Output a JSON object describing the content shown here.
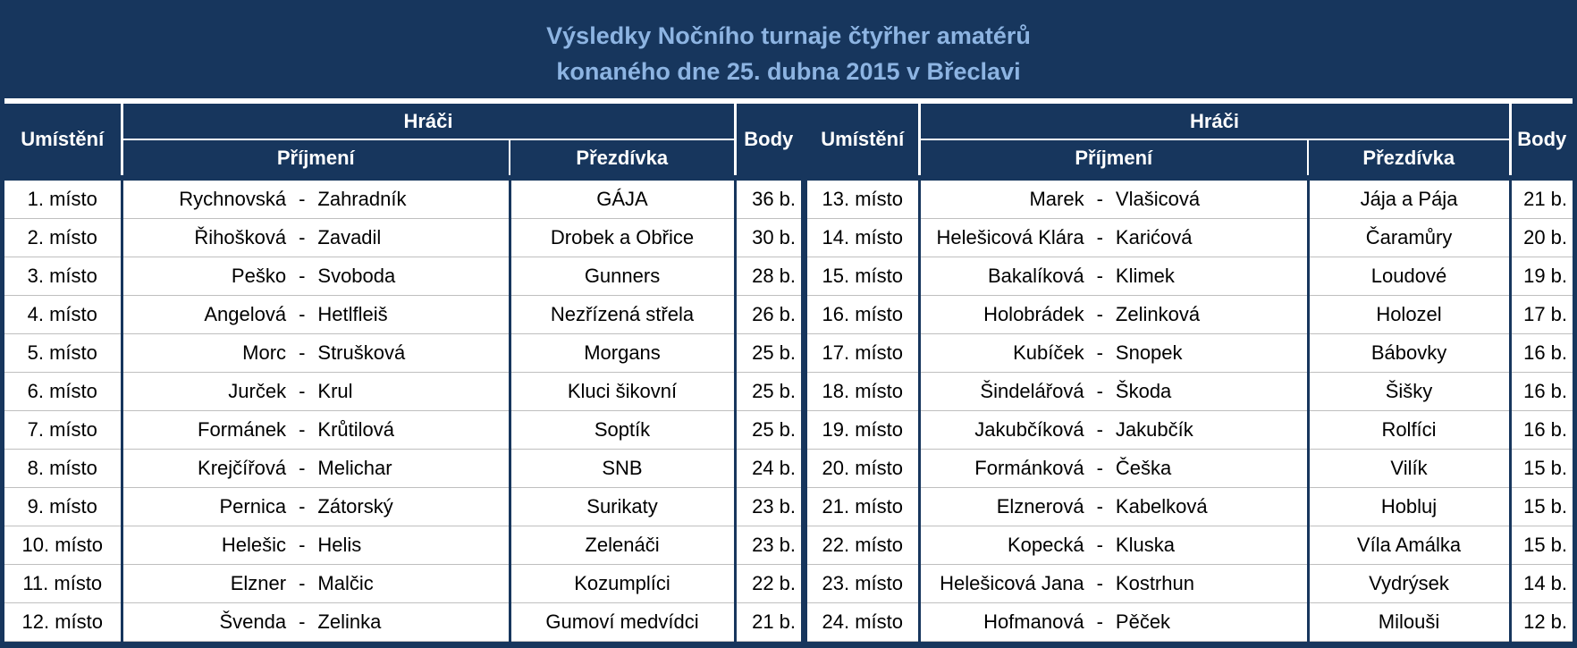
{
  "title": {
    "line1": "Výsledky Nočního turnaje čtyřher amatérů",
    "line2": "konaného dne 25. dubna 2015 v Břeclavi"
  },
  "headers": {
    "placement": "Umístění",
    "players": "Hráči",
    "surname": "Příjmení",
    "nickname": "Přezdívka",
    "points": "Body"
  },
  "left_rows": [
    {
      "place": "1. místo",
      "p1": "Rychnovská",
      "p2": "Zahradník",
      "nick": "GÁJA",
      "pts": "36 b."
    },
    {
      "place": "2. místo",
      "p1": "Řihošková",
      "p2": "Zavadil",
      "nick": "Drobek a Obřice",
      "pts": "30 b."
    },
    {
      "place": "3. místo",
      "p1": "Peško",
      "p2": "Svoboda",
      "nick": "Gunners",
      "pts": "28 b."
    },
    {
      "place": "4. místo",
      "p1": "Angelová",
      "p2": "Hetlfleiš",
      "nick": "Nezřízená střela",
      "pts": "26 b."
    },
    {
      "place": "5. místo",
      "p1": "Morc",
      "p2": "Strušková",
      "nick": "Morgans",
      "pts": "25 b."
    },
    {
      "place": "6. místo",
      "p1": "Jurček",
      "p2": "Krul",
      "nick": "Kluci šikovní",
      "pts": "25 b."
    },
    {
      "place": "7. místo",
      "p1": "Formánek",
      "p2": "Krůtilová",
      "nick": "Soptík",
      "pts": "25 b."
    },
    {
      "place": "8. místo",
      "p1": "Krejčířová",
      "p2": "Melichar",
      "nick": "SNB",
      "pts": "24 b."
    },
    {
      "place": "9. místo",
      "p1": "Pernica",
      "p2": "Zátorský",
      "nick": "Surikaty",
      "pts": "23 b."
    },
    {
      "place": "10. místo",
      "p1": "Helešic",
      "p2": "Helis",
      "nick": "Zelenáči",
      "pts": "23 b."
    },
    {
      "place": "11. místo",
      "p1": "Elzner",
      "p2": "Malčic",
      "nick": "Kozumplíci",
      "pts": "22 b."
    },
    {
      "place": "12. místo",
      "p1": "Švenda",
      "p2": "Zelinka",
      "nick": "Gumoví medvídci",
      "pts": "21 b."
    }
  ],
  "right_rows": [
    {
      "place": "13. místo",
      "p1": "Marek",
      "p2": "Vlašicová",
      "nick": "Jája a Pája",
      "pts": "21 b."
    },
    {
      "place": "14. místo",
      "p1": "Helešicová Klára",
      "p2": "Karićová",
      "nick": "Čaramůry",
      "pts": "20 b."
    },
    {
      "place": "15. místo",
      "p1": "Bakalíková",
      "p2": "Klimek",
      "nick": "Loudové",
      "pts": "19 b."
    },
    {
      "place": "16. místo",
      "p1": "Holobrádek",
      "p2": "Zelinková",
      "nick": "Holozel",
      "pts": "17 b."
    },
    {
      "place": "17. místo",
      "p1": "Kubíček",
      "p2": "Snopek",
      "nick": "Bábovky",
      "pts": "16 b."
    },
    {
      "place": "18. místo",
      "p1": "Šindelářová",
      "p2": "Škoda",
      "nick": "Šišky",
      "pts": "16 b."
    },
    {
      "place": "19. místo",
      "p1": "Jakubčíková",
      "p2": "Jakubčík",
      "nick": "Rolfíci",
      "pts": "16 b."
    },
    {
      "place": "20. místo",
      "p1": "Formánková",
      "p2": "Češka",
      "nick": "Vilík",
      "pts": "15 b."
    },
    {
      "place": "21. místo",
      "p1": "Elznerová",
      "p2": "Kabelková",
      "nick": "Hobluj",
      "pts": "15 b."
    },
    {
      "place": "22. místo",
      "p1": "Kopecká",
      "p2": "Kluska",
      "nick": "Víla Amálka",
      "pts": "15 b."
    },
    {
      "place": "23. místo",
      "p1": "Helešicová Jana",
      "p2": "Kostrhun",
      "nick": "Vydrýsek",
      "pts": "14 b."
    },
    {
      "place": "24. místo",
      "p1": "Hofmanová",
      "p2": "Pěček",
      "nick": "Milouši",
      "pts": "12 b."
    }
  ],
  "separator": "-",
  "colors": {
    "header_bg": "#17365d",
    "title_text": "#8db4e2",
    "header_text": "#ffffff"
  }
}
